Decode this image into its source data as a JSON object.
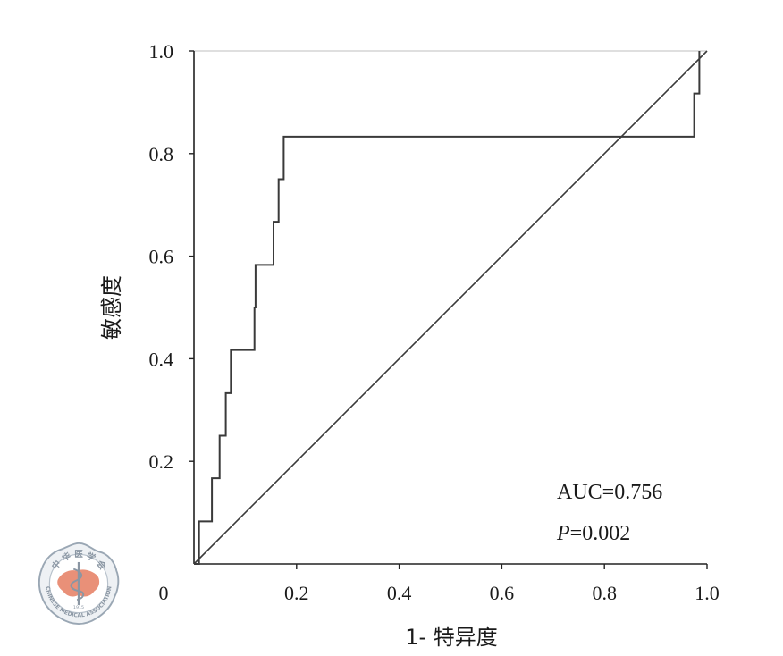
{
  "chart_data": {
    "type": "line",
    "title": "",
    "xlabel": "1- 特异度",
    "ylabel": "敏感度",
    "xlim": [
      0,
      1.0
    ],
    "ylim": [
      0,
      1.0
    ],
    "x_ticks": [
      0.2,
      0.4,
      0.6,
      0.8,
      1.0
    ],
    "x_tick_labels": [
      "0.2",
      "0.4",
      "0.6",
      "0.8",
      "1.0"
    ],
    "y_ticks": [
      0.2,
      0.4,
      0.6,
      0.8,
      1.0
    ],
    "y_tick_labels": [
      "0.2",
      "0.4",
      "0.6",
      "0.8",
      "1.0"
    ],
    "origin_label": "0",
    "grid": false,
    "series": [
      {
        "x": [
          0,
          0.01,
          0.01,
          0.035,
          0.035,
          0.05,
          0.05,
          0.062,
          0.062,
          0.072,
          0.072,
          0.085,
          0.085,
          0.118,
          0.118,
          0.12,
          0.12,
          0.155,
          0.155,
          0.165,
          0.165,
          0.175,
          0.175,
          0.975,
          0.975,
          0.985,
          0.985
        ],
        "y": [
          0,
          0,
          0.083,
          0.083,
          0.167,
          0.167,
          0.25,
          0.25,
          0.333,
          0.333,
          0.417,
          0.417,
          0.417,
          0.417,
          0.5,
          0.5,
          0.583,
          0.583,
          0.667,
          0.667,
          0.75,
          0.75,
          0.833,
          0.833,
          0.917,
          0.917,
          1.0
        ]
      }
    ],
    "reference_line": {
      "x": [
        0,
        1.0
      ],
      "y": [
        0,
        1.0
      ]
    },
    "annotations": {
      "auc": "AUC=0.756",
      "p_symbol": "P",
      "p_value": "=0.002"
    }
  },
  "logo": {
    "top_text": "中 华 医 学 会",
    "bottom_text": "CHINESE MEDICAL ASSOCIATION",
    "year": "1915"
  }
}
